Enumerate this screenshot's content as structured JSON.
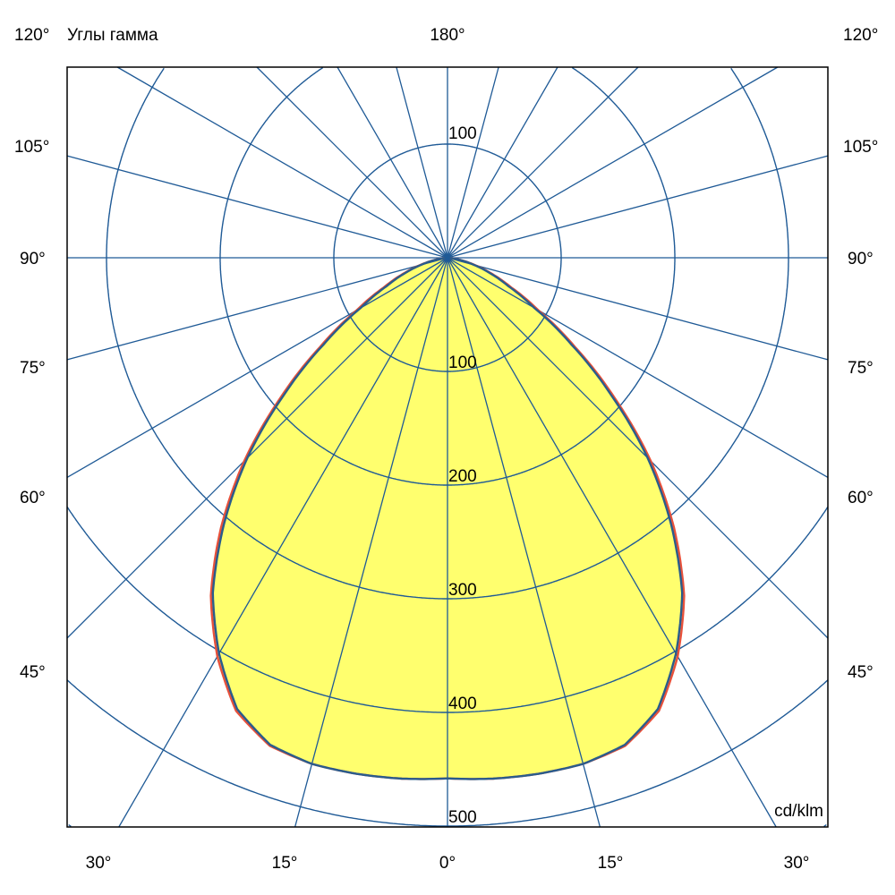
{
  "chart_data": {
    "type": "polar",
    "title": "Углы гамма",
    "unit_label": "cd/klm",
    "top_label": "180°",
    "left_angle_labels": [
      "120°",
      "105°",
      "90°",
      "75°",
      "60°",
      "45°"
    ],
    "right_angle_labels": [
      "120°",
      "105°",
      "90°",
      "75°",
      "60°",
      "45°"
    ],
    "bottom_angle_labels": [
      "30°",
      "15°",
      "0°",
      "15°",
      "30°"
    ],
    "radial_tick_labels_lower": [
      "100",
      "200",
      "300",
      "400",
      "500"
    ],
    "radial_tick_labels_upper": [
      "100"
    ],
    "radial_range": [
      0,
      500
    ],
    "ray_step_deg": 15,
    "grid": true,
    "colors": {
      "grid": "#1f5a96",
      "fill": "#ffff6e",
      "curve_c0_c180": "#e8503a",
      "curve_c90_c270": "#2a5c8c",
      "frame": "#000000"
    },
    "series": [
      {
        "gamma": [
          0,
          5,
          10,
          15,
          20,
          25,
          30,
          35,
          40,
          45,
          50,
          55,
          60,
          65,
          70,
          75,
          80,
          85,
          90
        ],
        "values": [
          458,
          460,
          461,
          461,
          457,
          440,
          405,
          363,
          310,
          253,
          192,
          137,
          92,
          62,
          42,
          25,
          12,
          4,
          0
        ]
      },
      {
        "gamma": [
          0,
          5,
          10,
          15,
          20,
          25,
          30,
          35,
          40,
          45,
          50,
          55,
          60,
          65,
          70,
          75,
          80,
          85,
          90
        ],
        "values": [
          458,
          460,
          461,
          461,
          456,
          438,
          402,
          360,
          306,
          249,
          188,
          133,
          88,
          59,
          40,
          24,
          11,
          4,
          0
        ]
      }
    ]
  }
}
